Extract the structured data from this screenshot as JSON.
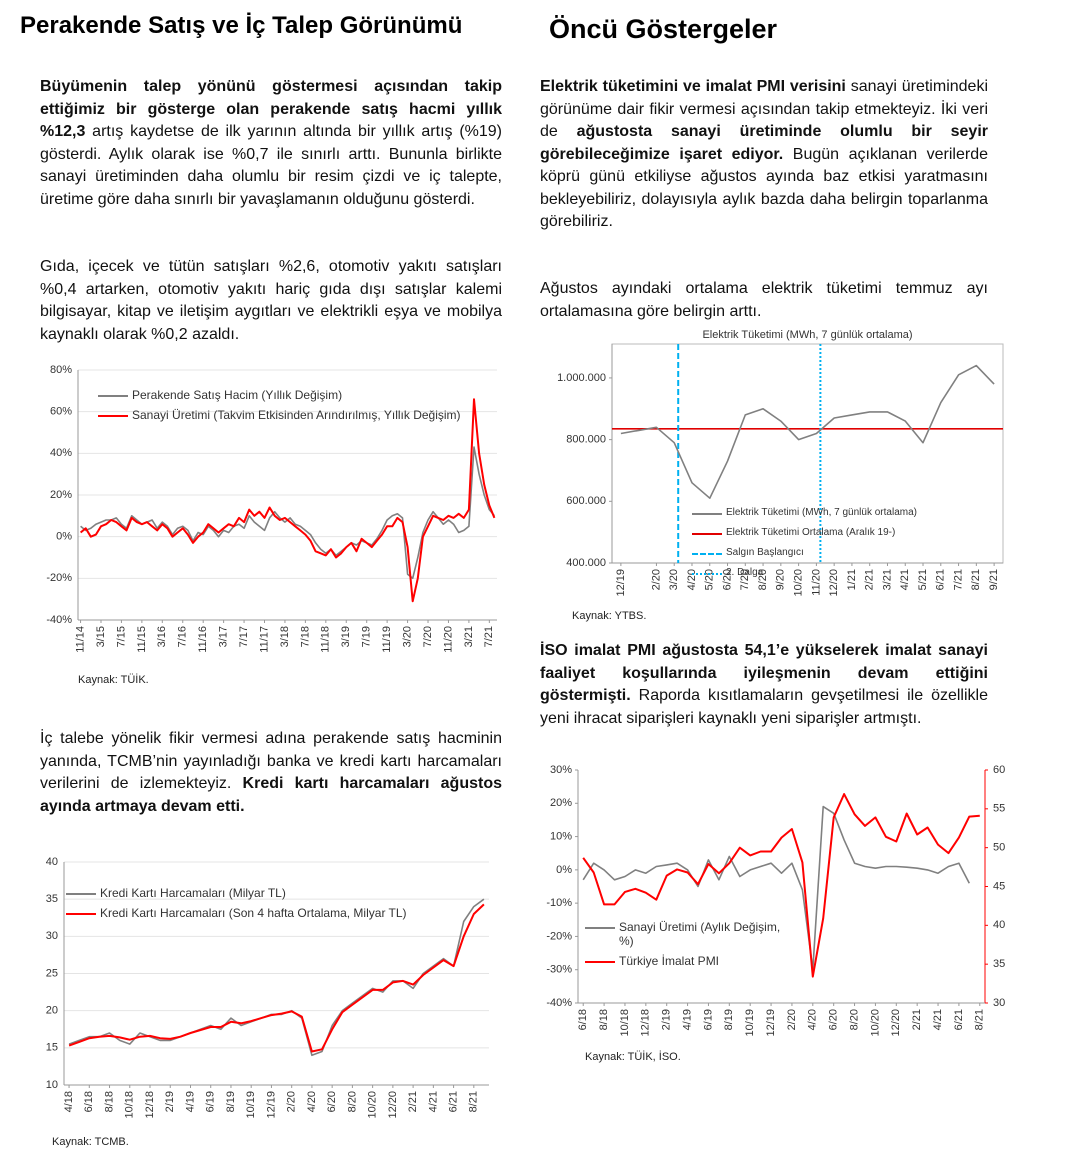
{
  "left_title": "Perakende Satış ve İç Talep Görünümü",
  "right_title": "Öncü Göstergeler",
  "paragraphs": [
    {
      "runs": [
        {
          "text": "Büyümenin talep yönünü göstermesi açısından takip ettiğimiz bir gösterge olan perakende satış hacmi yıllık %12,3",
          "bold": true
        },
        {
          "text": " artış kaydetse de ilk yarının altında bir yıllık artış (%19) gösterdi. Aylık olarak ise %0,7 ile sınırlı arttı. Bununla birlikte sanayi üretiminden daha olumlu bir resim çizdi ve iç talepte, üretime göre daha sınırlı bir yavaşlamanın olduğunu gösterdi.",
          "bold": false
        }
      ]
    },
    {
      "runs": [
        {
          "text": "Gıda, içecek ve tütün satışları %2,6, otomotiv yakıtı satışları %0,4 artarken, otomotiv yakıtı hariç gıda dışı satışlar kalemi bilgisayar, kitap ve iletişim aygıtları ve elektrikli eşya ve mobilya kaynaklı olarak %0,2 azaldı.",
          "bold": false
        }
      ]
    },
    {
      "runs": [
        {
          "text": "İç talebe yönelik fikir vermesi adına perakende satış hacminin yanında, TCMB’nin yayınladığı banka ve kredi kartı harcamaları verilerini de izlemekteyiz. ",
          "bold": false
        },
        {
          "text": "Kredi kartı harcamaları ağustos ayında artmaya devam etti.",
          "bold": true
        }
      ]
    },
    {
      "runs": [
        {
          "text": "Elektrik tüketimini ve imalat PMI verisini",
          "bold": true
        },
        {
          "text": " sanayi üretimindeki görünüme dair fikir vermesi açısından takip etmekteyiz. İki veri de ",
          "bold": false
        },
        {
          "text": "ağustosta sanayi üretiminde olumlu bir seyir görebileceğimize işaret ediyor.",
          "bold": true
        },
        {
          "text": " Bugün açıklanan verilerde köprü günü etkiliyse ağustos ayında baz etkisi yaratmasını bekleyebiliriz, dolayısıyla aylık bazda daha belirgin toparlanma görebiliriz.",
          "bold": false
        }
      ]
    },
    {
      "runs": [
        {
          "text": "Ağustos ayındaki ortalama elektrik tüketimi temmuz ayı ortalamasına göre belirgin arttı.",
          "bold": false
        }
      ]
    },
    {
      "runs": [
        {
          "text": "İSO imalat PMI ağustosta 54,1’e yükselerek imalat sanayi faaliyet koşullarında iyileşmenin devam ettiğini göstermişti.",
          "bold": true
        },
        {
          "text": " Raporda kısıtlamaların gevşetilmesi ile özellikle yeni ihracat siparişleri kaynaklı yeni siparişler artmıştı.",
          "bold": false
        }
      ]
    }
  ],
  "chart_data": [
    {
      "type": "line",
      "categories": [
        "11/14",
        null,
        null,
        null,
        "3/15",
        null,
        null,
        null,
        "7/15",
        null,
        null,
        null,
        "11/15",
        null,
        null,
        null,
        "3/16",
        null,
        null,
        null,
        "7/16",
        null,
        null,
        null,
        "11/16",
        null,
        null,
        null,
        "3/17",
        null,
        null,
        null,
        "7/17",
        null,
        null,
        null,
        "11/17",
        null,
        null,
        null,
        "3/18",
        null,
        null,
        null,
        "7/18",
        null,
        null,
        null,
        "11/18",
        null,
        null,
        null,
        "3/19",
        null,
        null,
        null,
        "7/19",
        null,
        null,
        null,
        "11/19",
        null,
        null,
        null,
        "3/20",
        null,
        null,
        null,
        "7/20",
        null,
        null,
        null,
        "11/20",
        null,
        null,
        null,
        "3/21",
        null,
        null,
        null,
        "7/21",
        null
      ],
      "series": [
        {
          "name": "Perakende Satış Hacim (Yıllık Değişim)",
          "color": "#808080",
          "values": [
            5,
            3,
            4,
            6,
            7,
            8,
            8,
            9,
            6,
            4,
            10,
            8,
            6,
            7,
            8,
            4,
            7,
            5,
            1,
            4,
            5,
            3,
            -2,
            2,
            1,
            5,
            3,
            0,
            3,
            2,
            5,
            6,
            4,
            10,
            7,
            5,
            3,
            9,
            12,
            9,
            7,
            9,
            6,
            5,
            3,
            1,
            -3,
            -6,
            -8,
            -6,
            -9,
            -7,
            -5,
            -3,
            -4,
            -2,
            -3,
            -4,
            -1,
            3,
            8,
            10,
            11,
            9,
            -18,
            -20,
            -10,
            2,
            8,
            12,
            9,
            6,
            8,
            6,
            2,
            3,
            5,
            43,
            30,
            20,
            13,
            10
          ]
        },
        {
          "name": "Sanayi Üretimi (Takvim Etkisinden Arındırılmış, Yıllık Değişim)",
          "color": "#ff0000",
          "values": [
            2,
            4,
            0,
            1,
            5,
            6,
            8,
            7,
            5,
            3,
            9,
            7,
            6,
            7,
            5,
            3,
            6,
            4,
            0,
            2,
            4,
            1,
            -3,
            0,
            2,
            6,
            4,
            2,
            4,
            6,
            5,
            9,
            7,
            13,
            10,
            12,
            9,
            14,
            10,
            8,
            9,
            7,
            5,
            3,
            1,
            -2,
            -7,
            -8,
            -9,
            -6,
            -10,
            -8,
            -5,
            -3,
            -7,
            -1,
            -3,
            -5,
            -2,
            1,
            5,
            5,
            9,
            7,
            -5,
            -31,
            -20,
            0,
            5,
            10,
            9,
            8,
            10,
            9,
            11,
            9,
            13,
            66,
            40,
            25,
            15,
            9
          ]
        }
      ],
      "ylim": [
        -40,
        80
      ],
      "yticks": [
        {
          "value": -40,
          "label": "-40%"
        },
        {
          "value": -20,
          "label": "-20%"
        },
        {
          "value": 0,
          "label": "0%"
        },
        {
          "value": 20,
          "label": "20%"
        },
        {
          "value": 40,
          "label": "40%"
        },
        {
          "value": 60,
          "label": "60%"
        },
        {
          "value": 80,
          "label": "80%"
        }
      ],
      "grid": true,
      "source": "Kaynak: TÜİK."
    },
    {
      "type": "line",
      "categories": [
        "4/18",
        null,
        "6/18",
        null,
        "8/18",
        null,
        "10/18",
        null,
        "12/18",
        null,
        "2/19",
        null,
        "4/19",
        null,
        "6/19",
        null,
        "8/19",
        null,
        "10/19",
        null,
        "12/19",
        null,
        "2/20",
        null,
        "4/20",
        null,
        "6/20",
        null,
        "8/20",
        null,
        "10/20",
        null,
        "12/20",
        null,
        "2/21",
        null,
        "4/21",
        null,
        "6/21",
        null,
        "8/21",
        null
      ],
      "series": [
        {
          "name": "Kredi Kartı Harcamaları (Milyar TL)",
          "color": "#808080",
          "values": [
            15.5,
            16,
            16.5,
            16.5,
            17,
            16,
            15.5,
            17,
            16.5,
            16,
            16,
            16.5,
            17,
            17.5,
            18,
            17.5,
            19,
            18,
            18.5,
            19,
            19.5,
            19.5,
            20,
            19,
            14,
            14.5,
            18,
            20,
            21,
            22,
            23,
            22.5,
            24,
            24,
            23,
            25,
            26,
            27,
            26,
            32,
            34,
            35
          ]
        },
        {
          "name": "Kredi Kartı Harcamaları (Son 4 hafta Ortalama, Milyar TL)",
          "color": "#ff0000",
          "values": [
            15.3,
            15.8,
            16.3,
            16.5,
            16.6,
            16.4,
            16.1,
            16.5,
            16.6,
            16.3,
            16.2,
            16.5,
            17,
            17.4,
            17.8,
            17.8,
            18.5,
            18.3,
            18.6,
            19,
            19.4,
            19.6,
            19.9,
            19.2,
            14.5,
            14.8,
            17.5,
            19.8,
            20.8,
            21.8,
            22.8,
            22.8,
            23.8,
            24,
            23.5,
            24.8,
            25.8,
            26.8,
            26,
            30,
            33,
            34.3
          ]
        }
      ],
      "ylim": [
        10,
        40
      ],
      "yticks": [
        10,
        15,
        20,
        25,
        30,
        35,
        40
      ],
      "grid": true,
      "source": "Kaynak: TCMB."
    },
    {
      "type": "line",
      "title": "Elektrik Tüketimi (MWh, 7 günlük ortalama)",
      "categories": [
        "12/19",
        null,
        "2/20",
        "3/20",
        "4/20",
        "5/20",
        "6/20",
        "7/20",
        "8/20",
        "9/20",
        "10/20",
        "11/20",
        "12/20",
        "1/21",
        "2/21",
        "3/21",
        "4/21",
        "5/21",
        "6/21",
        "7/21",
        "8/21",
        "9/21"
      ],
      "series": [
        {
          "name": "Elektrik Tüketimi (MWh, 7 günlük ortalama)",
          "color": "#808080",
          "values": [
            820000,
            830000,
            840000,
            790000,
            660000,
            610000,
            730000,
            880000,
            900000,
            860000,
            800000,
            820000,
            870000,
            880000,
            890000,
            890000,
            860000,
            790000,
            920000,
            1010000,
            1040000,
            980000
          ]
        }
      ],
      "reference_lines": [
        {
          "name": "Elektrik Tüketimi Ortalama (Aralık 19-)",
          "value": 835000,
          "color": "#e00000"
        }
      ],
      "event_lines": [
        {
          "name": "Salgın Başlangıcı",
          "x": "3/20",
          "color": "#00b0f0",
          "style": "dashed"
        },
        {
          "name": "2. Dalga",
          "x": "11/20",
          "color": "#00b0f0",
          "style": "dotted"
        }
      ],
      "ylim": [
        400000,
        1110000
      ],
      "yticks": [
        {
          "value": 400000,
          "label": "400.000"
        },
        {
          "value": 600000,
          "label": "600.000"
        },
        {
          "value": 800000,
          "label": "800.000"
        },
        {
          "value": 1000000,
          "label": "1.000.000"
        }
      ],
      "grid": false,
      "frame": true,
      "source": "Kaynak: YTBS."
    },
    {
      "type": "line",
      "categories": [
        "6/18",
        null,
        "8/18",
        null,
        "10/18",
        null,
        "12/18",
        null,
        "2/19",
        null,
        "4/19",
        null,
        "6/19",
        null,
        "8/19",
        null,
        "10/19",
        null,
        "12/19",
        null,
        "2/20",
        null,
        "4/20",
        null,
        "6/20",
        null,
        "8/20",
        null,
        "10/20",
        null,
        "12/20",
        null,
        "2/21",
        null,
        "4/21",
        null,
        "6/21",
        null,
        "8/21"
      ],
      "series": [
        {
          "name": "Sanayi Üretimi (Aylık Değişim, %)",
          "color": "#808080",
          "values": [
            -3,
            2,
            0,
            -3,
            -2,
            0,
            -1,
            1,
            1.5,
            2,
            0,
            -5,
            3,
            -3,
            4,
            -2,
            0,
            1,
            2,
            -1,
            2,
            -6,
            -30,
            19,
            17,
            9,
            2,
            1,
            0.5,
            1,
            1,
            0.8,
            0.5,
            0,
            -1,
            1,
            2,
            -4,
            null
          ]
        },
        {
          "name": "Türkiye İmalat PMI",
          "color": "#ff0000",
          "axis": "y2",
          "values": [
            48.7,
            46.8,
            42.7,
            42.7,
            44.3,
            44.7,
            44.2,
            43.3,
            46.4,
            47.2,
            46.8,
            45.3,
            47.9,
            46.7,
            48.0,
            50.0,
            49.0,
            49.5,
            49.5,
            51.3,
            52.4,
            48.1,
            33.4,
            40.9,
            53.9,
            56.9,
            54.3,
            52.8,
            53.9,
            51.4,
            50.8,
            54.4,
            51.7,
            52.6,
            50.4,
            49.3,
            51.3,
            54.0,
            54.1
          ]
        }
      ],
      "ylim": [
        -40,
        30
      ],
      "yticks": [
        {
          "value": -40,
          "label": "-40%"
        },
        {
          "value": -30,
          "label": "-30%"
        },
        {
          "value": -20,
          "label": "-20%"
        },
        {
          "value": -10,
          "label": "-10%"
        },
        {
          "value": 0,
          "label": "0%"
        },
        {
          "value": 10,
          "label": "10%"
        },
        {
          "value": 20,
          "label": "20%"
        },
        {
          "value": 30,
          "label": "30%"
        }
      ],
      "y2lim": [
        30,
        60
      ],
      "y2ticks": [
        30,
        35,
        40,
        45,
        50,
        55,
        60
      ],
      "y2_color": "#ff0000",
      "grid": false,
      "source": "Kaynak: TÜİK, İSO."
    }
  ]
}
